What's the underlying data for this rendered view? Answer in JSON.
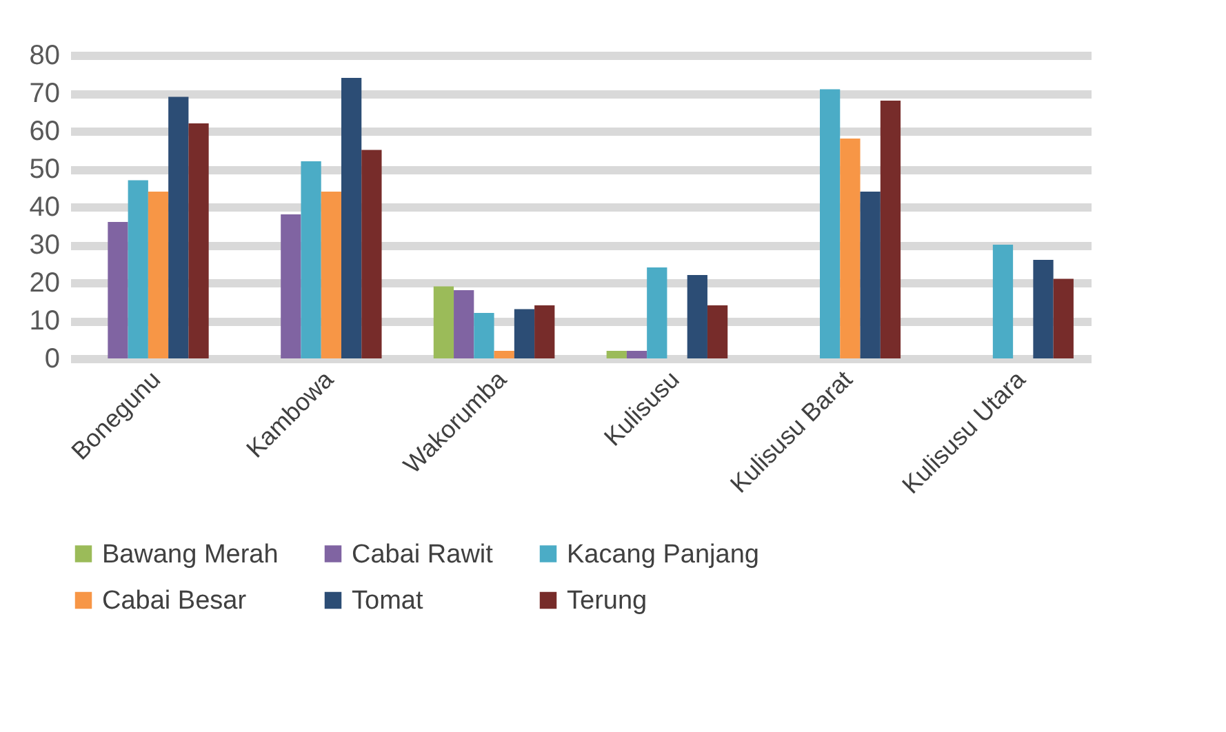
{
  "chart_data": {
    "type": "bar",
    "categories": [
      "Bonegunu",
      "Kambowa",
      "Wakorumba",
      "Kulisusu",
      "Kulisusu Barat",
      "Kulisusu Utara"
    ],
    "series": [
      {
        "name": "Bawang Merah",
        "color": "#9bbb59",
        "values": [
          0,
          0,
          19,
          2,
          0,
          0
        ]
      },
      {
        "name": "Cabai Rawit",
        "color": "#8064a2",
        "values": [
          36,
          38,
          18,
          2,
          0,
          0
        ]
      },
      {
        "name": "Kacang Panjang",
        "color": "#4bacc6",
        "values": [
          47,
          52,
          12,
          24,
          71,
          30
        ]
      },
      {
        "name": "Cabai Besar",
        "color": "#f79646",
        "values": [
          44,
          44,
          2,
          0,
          58,
          0
        ]
      },
      {
        "name": "Tomat",
        "color": "#2c4d75",
        "values": [
          69,
          74,
          13,
          22,
          44,
          26
        ]
      },
      {
        "name": "Terung",
        "color": "#772c2a",
        "values": [
          62,
          55,
          14,
          14,
          68,
          21
        ]
      }
    ],
    "ylim": [
      0,
      80
    ],
    "yticks": [
      0,
      10,
      20,
      30,
      40,
      50,
      60,
      70,
      80
    ],
    "grid": "y",
    "legend": "bottom"
  }
}
